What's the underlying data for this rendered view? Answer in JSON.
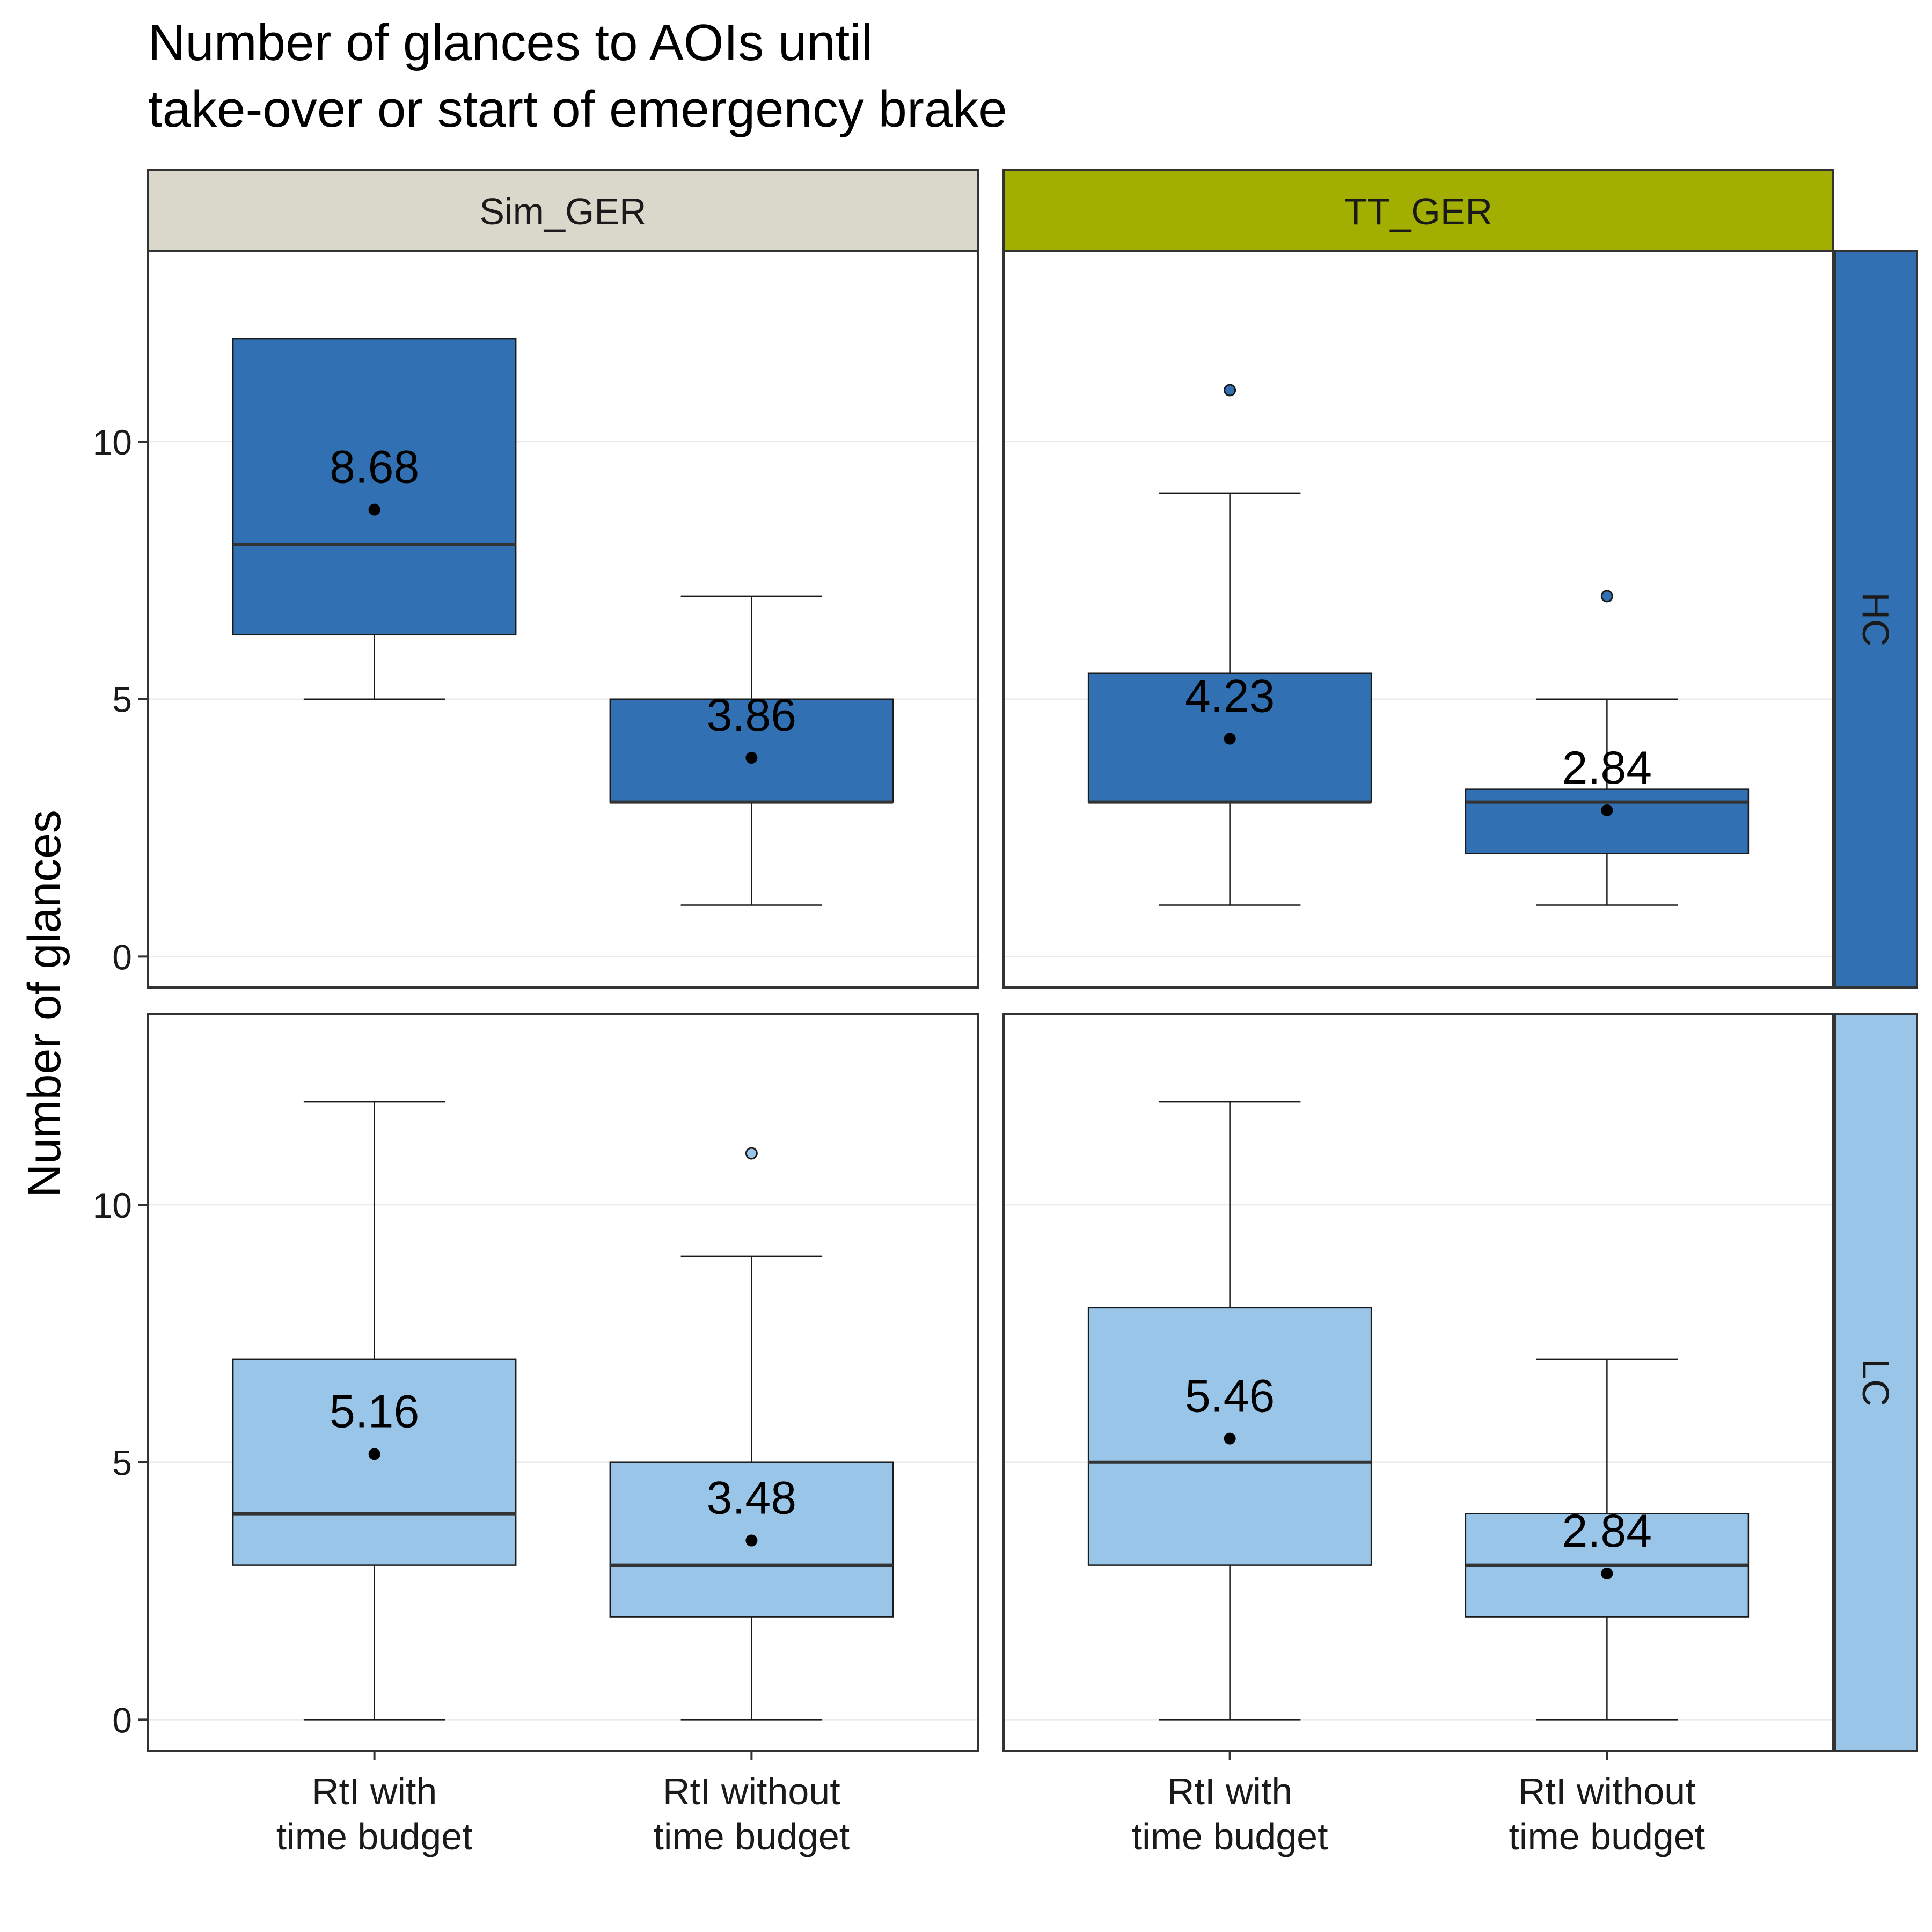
{
  "chart_data": {
    "type": "boxplot",
    "title_lines": [
      "Number of glances to AOIs until",
      "take-over or start of emergency brake"
    ],
    "ylabel": "Number of glances",
    "xlabel": "",
    "categories": [
      [
        "RtI with",
        "time budget"
      ],
      [
        "RtI without",
        "time budget"
      ]
    ],
    "ylim": [
      -0.6,
      13.7
    ],
    "yticks": [
      0,
      5,
      10
    ],
    "grid": true,
    "columns": [
      {
        "label": "Sim_GER",
        "color": "#d9d8cb"
      },
      {
        "label": "TT_GER",
        "color": "#a2ae00"
      }
    ],
    "rows": [
      {
        "label": "HC",
        "color": "#3170b2"
      },
      {
        "label": "LC",
        "color": "#99c5e9"
      }
    ],
    "panels": [
      {
        "column": "Sim_GER",
        "row": "HC",
        "boxes": [
          {
            "category": "RtI with time budget",
            "whisker_low": 5,
            "q1": 6.25,
            "median": 8,
            "q3": 12,
            "whisker_high": 12,
            "mean": 8.68,
            "mean_label": "8.68",
            "outliers": []
          },
          {
            "category": "RtI without time budget",
            "whisker_low": 1,
            "q1": 3,
            "median": 3,
            "q3": 5,
            "whisker_high": 7,
            "mean": 3.86,
            "mean_label": "3.86",
            "outliers": []
          }
        ]
      },
      {
        "column": "TT_GER",
        "row": "HC",
        "boxes": [
          {
            "category": "RtI with time budget",
            "whisker_low": 1,
            "q1": 3,
            "median": 3,
            "q3": 5.5,
            "whisker_high": 9,
            "mean": 4.23,
            "mean_label": "4.23",
            "outliers": [
              11
            ]
          },
          {
            "category": "RtI without time budget",
            "whisker_low": 1,
            "q1": 2,
            "median": 3,
            "q3": 3.25,
            "whisker_high": 5,
            "mean": 2.84,
            "mean_label": "2.84",
            "outliers": [
              7
            ]
          }
        ]
      },
      {
        "column": "Sim_GER",
        "row": "LC",
        "boxes": [
          {
            "category": "RtI with time budget",
            "whisker_low": 0,
            "q1": 3,
            "median": 4,
            "q3": 7,
            "whisker_high": 12,
            "mean": 5.16,
            "mean_label": "5.16",
            "outliers": []
          },
          {
            "category": "RtI without time budget",
            "whisker_low": 0,
            "q1": 2,
            "median": 3,
            "q3": 5,
            "whisker_high": 9,
            "mean": 3.48,
            "mean_label": "3.48",
            "outliers": [
              11
            ]
          }
        ]
      },
      {
        "column": "TT_GER",
        "row": "LC",
        "boxes": [
          {
            "category": "RtI with time budget",
            "whisker_low": 0,
            "q1": 3,
            "median": 5,
            "q3": 8,
            "whisker_high": 12,
            "mean": 5.46,
            "mean_label": "5.46",
            "outliers": []
          },
          {
            "category": "RtI without time budget",
            "whisker_low": 0,
            "q1": 2,
            "median": 3,
            "q3": 4,
            "whisker_high": 7,
            "mean": 2.84,
            "mean_label": "2.84",
            "outliers": []
          }
        ]
      }
    ]
  }
}
